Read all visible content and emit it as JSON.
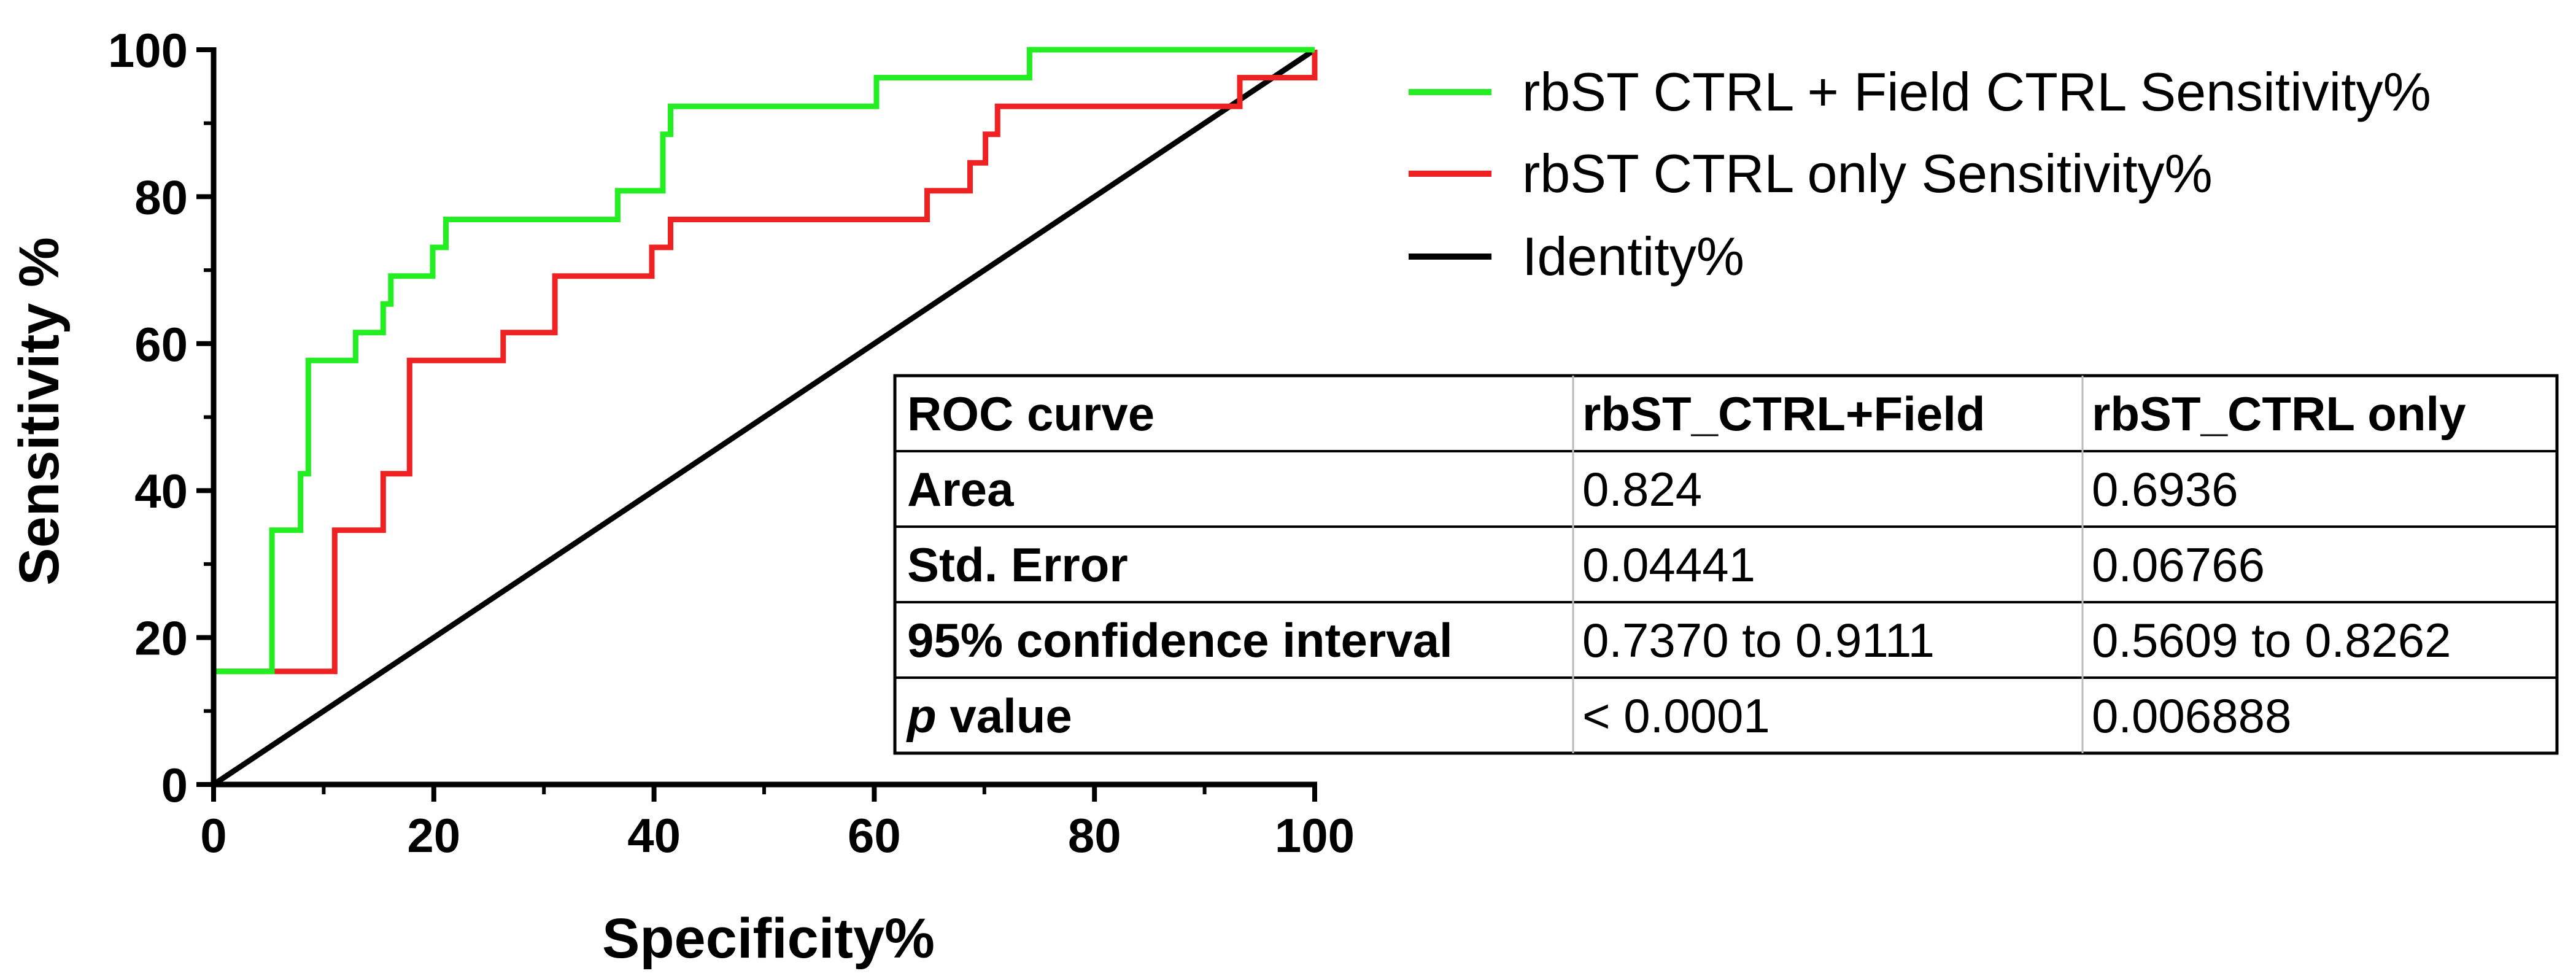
{
  "chart_data": {
    "type": "line",
    "title": "",
    "xlabel": "Specificity%",
    "ylabel": "Sensitivity %",
    "xlim": [
      0,
      100
    ],
    "ylim": [
      0,
      100
    ],
    "x_ticks": [
      "0",
      "20",
      "40",
      "60",
      "80",
      "100"
    ],
    "y_ticks": [
      "0",
      "20",
      "40",
      "60",
      "80",
      "100"
    ],
    "grid": false,
    "legend_position": "top-right",
    "series": [
      {
        "name": "rbST CTRL + Field CTRL Sensitivity%",
        "color": "#22ee22",
        "x": [
          0,
          0,
          5.3,
          5.3,
          7.9,
          7.9,
          8.6,
          8.6,
          12.9,
          12.9,
          15.4,
          15.4,
          16.1,
          16.1,
          19.9,
          19.9,
          21.1,
          21.1,
          36.7,
          36.7,
          40.8,
          40.8,
          41.5,
          41.5,
          60.2,
          60.2,
          74.1,
          74.1,
          100
        ],
        "y": [
          0,
          15.4,
          15.4,
          34.6,
          34.6,
          42.3,
          42.3,
          57.7,
          57.7,
          61.5,
          61.5,
          65.4,
          65.4,
          69.2,
          69.2,
          73.1,
          73.1,
          76.9,
          76.9,
          80.8,
          80.8,
          88.5,
          88.5,
          92.3,
          92.3,
          96.2,
          96.2,
          100,
          100
        ]
      },
      {
        "name": "rbST CTRL only Sensitivity%",
        "color": "#ee2222",
        "x": [
          0,
          11.0,
          11.0,
          15.4,
          15.4,
          17.8,
          17.8,
          26.3,
          26.3,
          31.0,
          31.0,
          39.8,
          39.8,
          41.5,
          41.5,
          64.8,
          64.8,
          68.7,
          68.7,
          70.1,
          70.1,
          71.2,
          71.2,
          93.2,
          93.2,
          100,
          100
        ],
        "y": [
          15.4,
          15.4,
          34.6,
          34.6,
          42.3,
          42.3,
          57.7,
          57.7,
          61.5,
          61.5,
          69.2,
          69.2,
          73.1,
          73.1,
          76.9,
          76.9,
          80.8,
          80.8,
          84.6,
          84.6,
          88.5,
          88.5,
          92.3,
          92.3,
          96.2,
          96.2,
          100
        ]
      },
      {
        "name": "Identity%",
        "color": "#000000",
        "x": [
          0,
          100
        ],
        "y": [
          0,
          100
        ]
      }
    ],
    "table": {
      "headers": [
        "ROC curve",
        "rbST_CTRL+Field",
        "rbST_CTRL only"
      ],
      "rows": [
        {
          "label": "Area",
          "values": [
            "0.824",
            "0.6936"
          ]
        },
        {
          "label": "Std. Error",
          "values": [
            "0.04441",
            "0.06766"
          ]
        },
        {
          "label": "95% confidence interval",
          "values": [
            "0.7370 to 0.9111",
            "0.5609 to 0.8262"
          ]
        },
        {
          "label_italic": "p",
          "label_rest": " value",
          "values": [
            "< 0.0001",
            "0.006888"
          ]
        }
      ]
    }
  }
}
